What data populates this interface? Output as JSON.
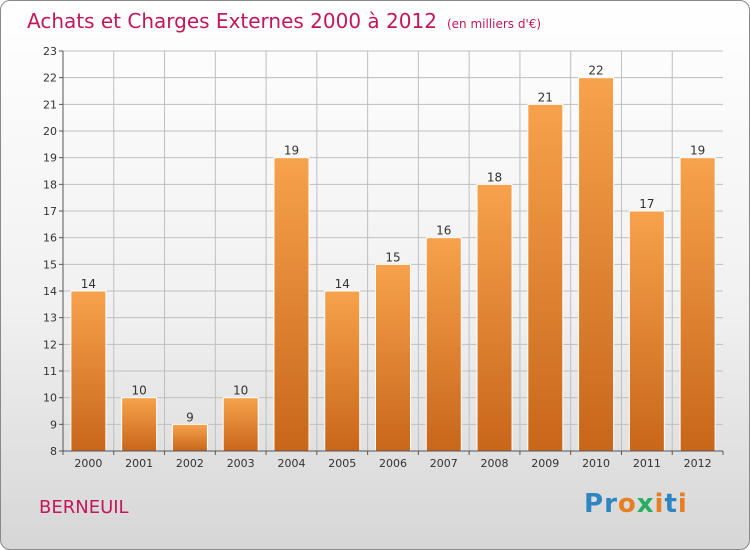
{
  "title": "Achats et Charges Externes 2000 à 2012",
  "subtitle": "(en milliers d'€)",
  "place": "BERNEUIL",
  "logo": {
    "text": "Proxiti",
    "letter_colors": [
      "#2e86c1",
      "#2e86c1",
      "#e67e22",
      "#27ae60",
      "#e67e22",
      "#2e86c1",
      "#e67e22"
    ]
  },
  "colors": {
    "title": "#c2185b",
    "bar_light": "#f7a24c",
    "bar_dark": "#c8661a",
    "grid": "#bfbfbf"
  },
  "chart_data": {
    "type": "bar",
    "title": "Achats et Charges Externes 2000 à 2012",
    "subtitle": "(en milliers d'€)",
    "categories": [
      "2000",
      "2001",
      "2002",
      "2003",
      "2004",
      "2005",
      "2006",
      "2007",
      "2008",
      "2009",
      "2010",
      "2011",
      "2012"
    ],
    "values": [
      14,
      10,
      9,
      10,
      19,
      14,
      15,
      16,
      18,
      21,
      22,
      17,
      19
    ],
    "ylim": [
      8,
      23
    ],
    "yticks": [
      8,
      9,
      10,
      11,
      12,
      13,
      14,
      15,
      16,
      17,
      18,
      19,
      20,
      21,
      22,
      23
    ],
    "grid": true,
    "data_labels": true
  }
}
